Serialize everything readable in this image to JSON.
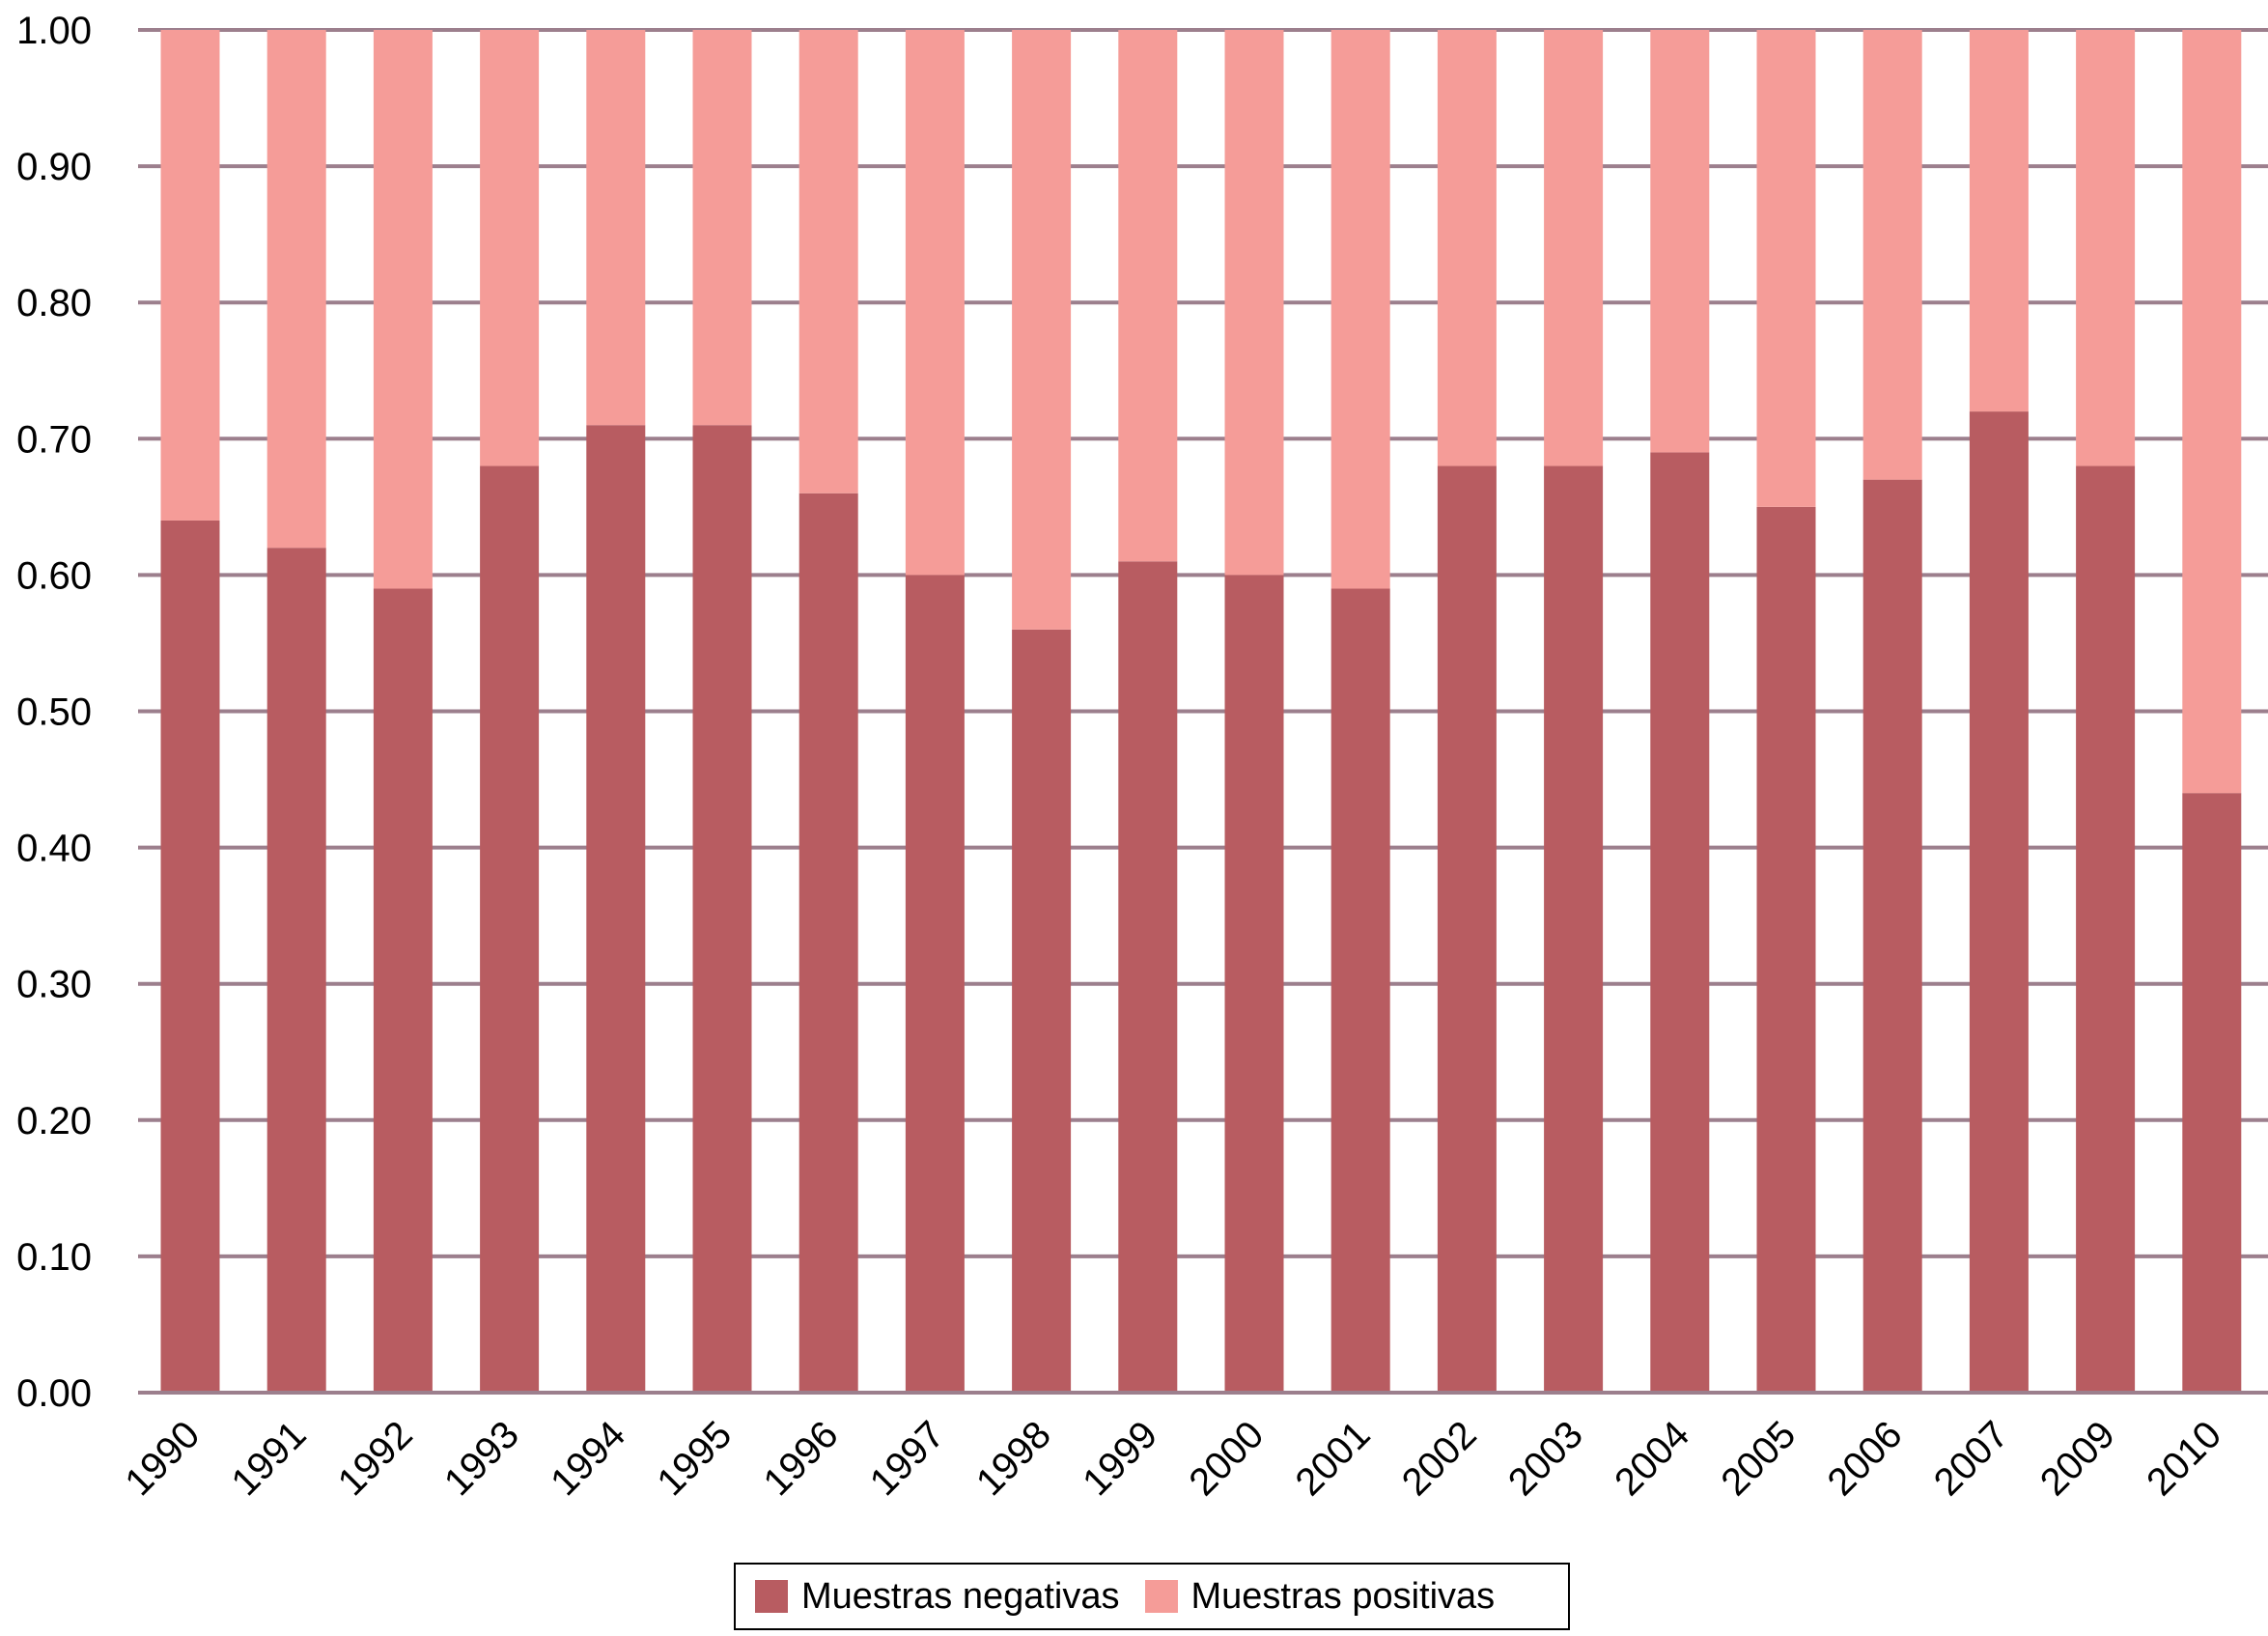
{
  "chart_data": {
    "type": "bar",
    "stacked": true,
    "title": "",
    "xlabel": "",
    "ylabel": "",
    "ylim": [
      0,
      1
    ],
    "yticks": [
      "0.00",
      "0.10",
      "0.20",
      "0.30",
      "0.40",
      "0.50",
      "0.60",
      "0.70",
      "0.80",
      "0.90",
      "1.00"
    ],
    "grid": true,
    "legend_position": "bottom",
    "categories": [
      "1990",
      "1991",
      "1992",
      "1993",
      "1994",
      "1995",
      "1996",
      "1997",
      "1998",
      "1999",
      "2000",
      "2001",
      "2002",
      "2003",
      "2004",
      "2005",
      "2006",
      "2007",
      "2009",
      "2010"
    ],
    "series": [
      {
        "name": "Muestras negativas",
        "color": "#b85c61",
        "values": [
          0.64,
          0.62,
          0.59,
          0.68,
          0.71,
          0.71,
          0.66,
          0.6,
          0.56,
          0.61,
          0.6,
          0.59,
          0.68,
          0.68,
          0.69,
          0.65,
          0.67,
          0.72,
          0.68,
          0.44
        ]
      },
      {
        "name": "Muestras positivas",
        "color": "#f59c98",
        "values": [
          0.36,
          0.38,
          0.41,
          0.32,
          0.29,
          0.29,
          0.34,
          0.4,
          0.44,
          0.39,
          0.4,
          0.41,
          0.32,
          0.32,
          0.31,
          0.35,
          0.33,
          0.28,
          0.32,
          0.56
        ]
      }
    ]
  }
}
